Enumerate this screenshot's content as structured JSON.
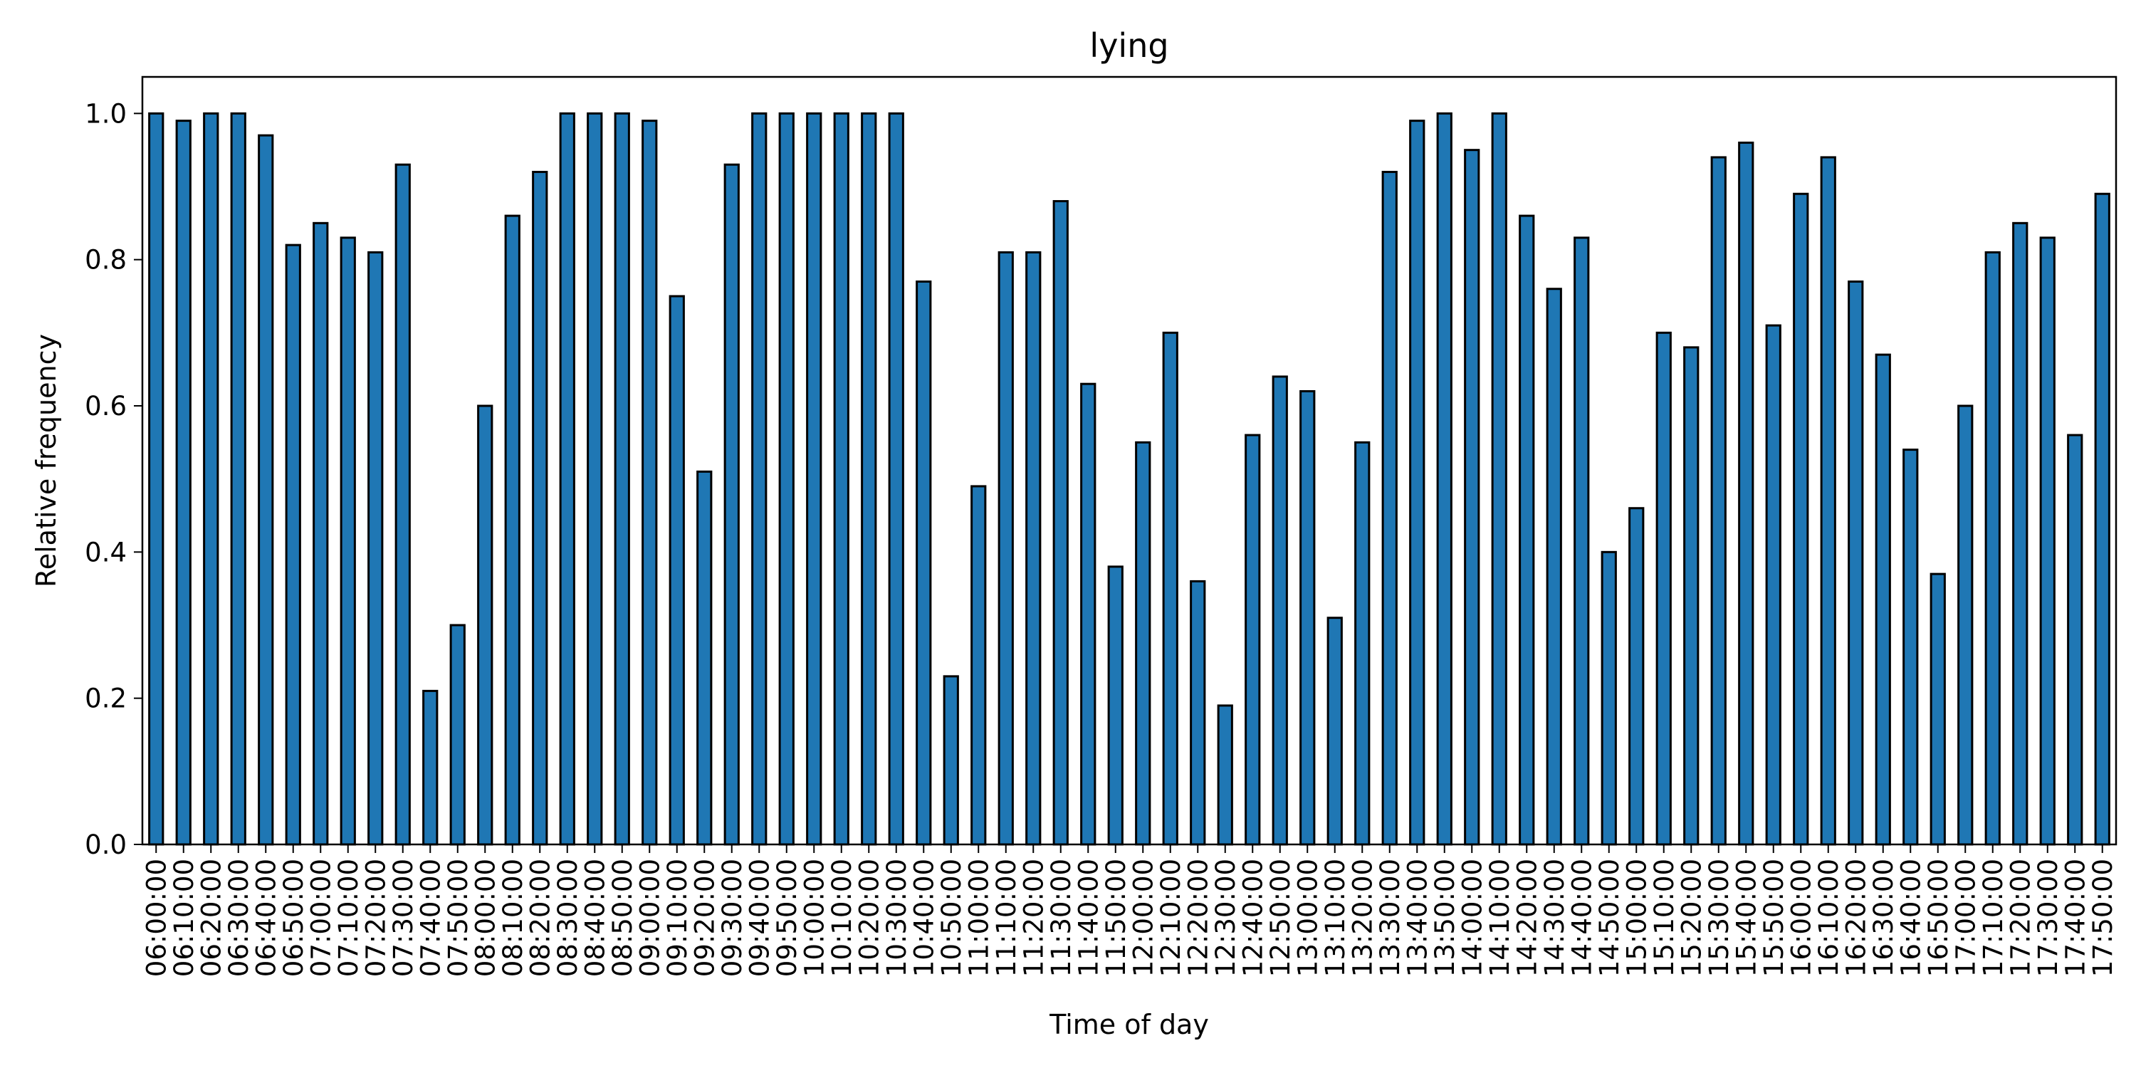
{
  "chart_data": {
    "type": "bar",
    "title": "lying",
    "xlabel": "Time of day",
    "ylabel": "Relative frequency",
    "ylim": [
      0,
      1.05
    ],
    "yticks": [
      "0.0",
      "0.2",
      "0.4",
      "0.6",
      "0.8",
      "1.0"
    ],
    "ytick_values": [
      0,
      0.2,
      0.4,
      0.6,
      0.8,
      1.0
    ],
    "bar_color": "#1f77b4",
    "edge_color": "#000000",
    "grid": false,
    "categories": [
      "06:00:00",
      "06:10:00",
      "06:20:00",
      "06:30:00",
      "06:40:00",
      "06:50:00",
      "07:00:00",
      "07:10:00",
      "07:20:00",
      "07:30:00",
      "07:40:00",
      "07:50:00",
      "08:00:00",
      "08:10:00",
      "08:20:00",
      "08:30:00",
      "08:40:00",
      "08:50:00",
      "09:00:00",
      "09:10:00",
      "09:20:00",
      "09:30:00",
      "09:40:00",
      "09:50:00",
      "10:00:00",
      "10:10:00",
      "10:20:00",
      "10:30:00",
      "10:40:00",
      "10:50:00",
      "11:00:00",
      "11:10:00",
      "11:20:00",
      "11:30:00",
      "11:40:00",
      "11:50:00",
      "12:00:00",
      "12:10:00",
      "12:20:00",
      "12:30:00",
      "12:40:00",
      "12:50:00",
      "13:00:00",
      "13:10:00",
      "13:20:00",
      "13:30:00",
      "13:40:00",
      "13:50:00",
      "14:00:00",
      "14:10:00",
      "14:20:00",
      "14:30:00",
      "14:40:00",
      "14:50:00",
      "15:00:00",
      "15:10:00",
      "15:20:00",
      "15:30:00",
      "15:40:00",
      "15:50:00",
      "16:00:00",
      "16:10:00",
      "16:20:00",
      "16:30:00",
      "16:40:00",
      "16:50:00",
      "17:00:00",
      "17:10:00",
      "17:20:00",
      "17:30:00",
      "17:40:00",
      "17:50:00"
    ],
    "values": [
      1.0,
      0.99,
      1.0,
      1.0,
      0.97,
      0.82,
      0.85,
      0.83,
      0.81,
      0.93,
      0.21,
      0.3,
      0.6,
      0.86,
      0.92,
      1.0,
      1.0,
      1.0,
      0.99,
      0.75,
      0.51,
      0.93,
      1.0,
      1.0,
      1.0,
      1.0,
      1.0,
      1.0,
      0.77,
      0.23,
      0.49,
      0.81,
      0.81,
      0.88,
      0.63,
      0.38,
      0.55,
      0.7,
      0.36,
      0.19,
      0.56,
      0.64,
      0.62,
      0.31,
      0.55,
      0.92,
      0.99,
      1.0,
      0.95,
      1.0,
      0.86,
      0.76,
      0.83,
      0.4,
      0.46,
      0.7,
      0.68,
      0.94,
      0.96,
      0.71,
      0.89,
      0.94,
      0.77,
      0.67,
      0.54,
      0.37,
      0.6,
      0.81,
      0.85,
      0.83,
      0.56,
      0.89
    ]
  }
}
